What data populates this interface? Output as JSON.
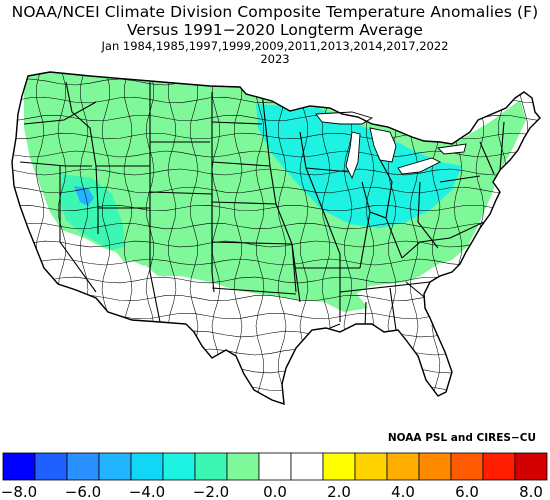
{
  "title": {
    "line1": "NOAA/NCEI Climate Division Composite Temperature Anomalies (F)",
    "line2": "Versus 1991−2020 Longterm Average",
    "line3": "Jan   1984,1985,1997,1999,2009,2011,2013,2014,2017,2022",
    "line4": "2023"
  },
  "credit": "NOAA PSL and CIRES−CU",
  "legend": {
    "colors": [
      "#0000ff",
      "#2060ff",
      "#2a8fff",
      "#22b4ff",
      "#12d6f5",
      "#1ef2e2",
      "#3cf6b4",
      "#7ef899",
      "#ffffff",
      "#ffffff",
      "#ffff00",
      "#ffd300",
      "#ffad00",
      "#ff8a00",
      "#ff5a00",
      "#ff1e00",
      "#d20000"
    ],
    "labels": [
      "−8.0",
      "−6.0",
      "−4.0",
      "−2.0",
      "0.0",
      "2.0",
      "4.0",
      "6.0",
      "8.0"
    ]
  },
  "colors": {
    "light_green": "#7ef899",
    "aqua_green": "#3cf6b4",
    "cyan": "#1ef2e2",
    "sky": "#22b4ff",
    "border": "#000000"
  }
}
